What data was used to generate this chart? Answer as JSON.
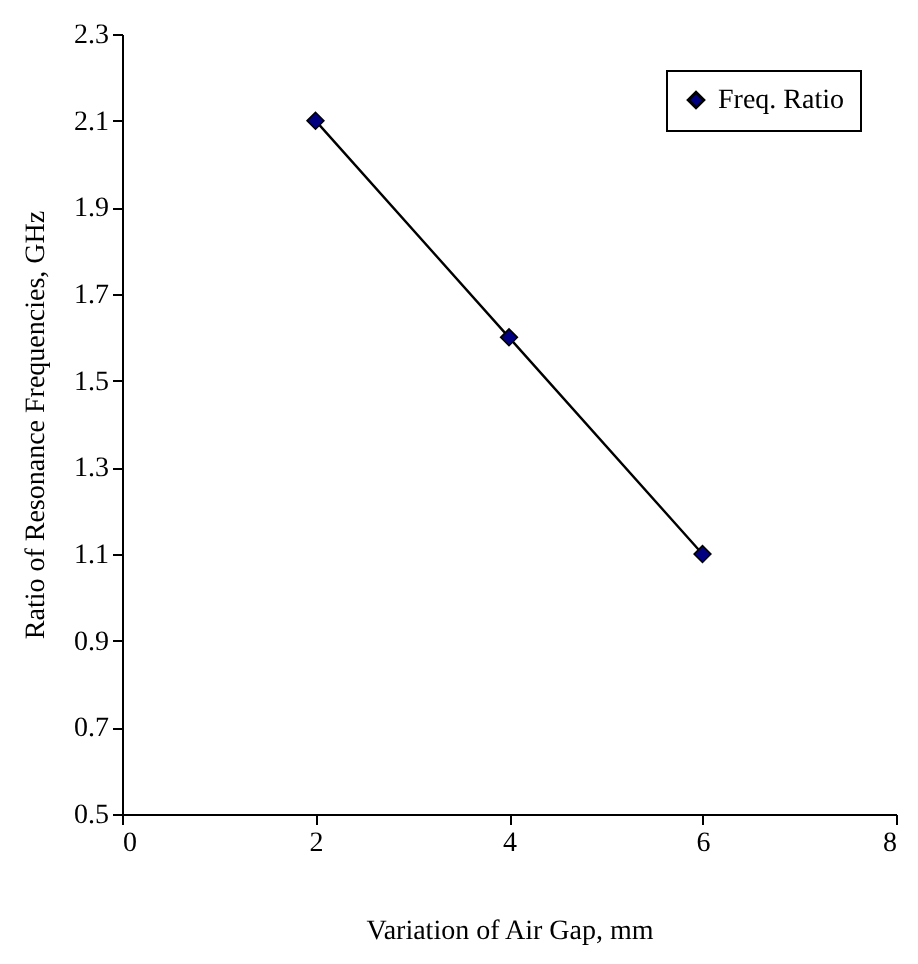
{
  "chart_data": {
    "type": "line",
    "xlabel": "Variation of Air Gap, mm",
    "ylabel": "Ratio of Resonance Frequencies, GHz",
    "x": [
      2,
      4,
      6
    ],
    "series": [
      {
        "name": "Freq. Ratio",
        "color": "#000080",
        "values": [
          2.1,
          1.6,
          1.1
        ]
      }
    ],
    "xlim": [
      0,
      8
    ],
    "xticks": [
      0,
      2,
      4,
      6,
      8
    ],
    "ylim": [
      0.5,
      2.3
    ],
    "yticks": [
      0.5,
      0.7,
      0.9,
      1.1,
      1.3,
      1.5,
      1.7,
      1.9,
      2.1,
      2.3
    ],
    "grid": false,
    "legend": "top right",
    "marker": "diamond",
    "line_style": "solid"
  }
}
